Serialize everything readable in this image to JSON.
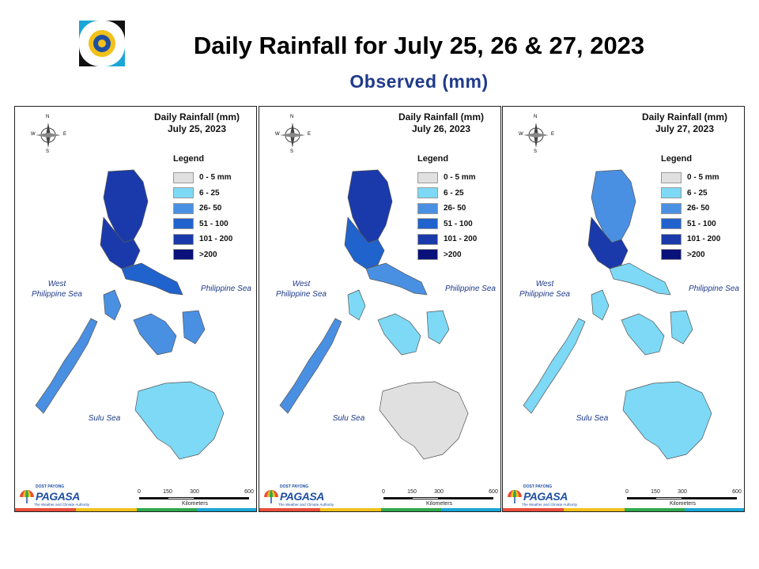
{
  "title": "Daily Rainfall for July 25, 26 & 27, 2023",
  "subtitle": "Observed (mm)",
  "legend_colors": [
    "#e0e0e0",
    "#7dd9f5",
    "#4a90e2",
    "#2163cc",
    "#1a3aab",
    "#0a117a"
  ],
  "panels": [
    {
      "map_title_line1": "Daily Rainfall (mm)",
      "map_title_line2": "July 25, 2023",
      "legend_title": "Legend",
      "legend_labels": [
        "0 - 5 mm",
        "6 - 25",
        "26- 50",
        "51 - 100",
        "101 - 200",
        ">200"
      ],
      "sea_west_line1": "West",
      "sea_west_line2": "Philippine Sea",
      "sea_east": "Philippine Sea",
      "sea_south": "Sulu Sea",
      "compass": {
        "n": "N",
        "s": "S",
        "e": "E",
        "w": "W"
      },
      "scale_ticks": [
        "0",
        "150",
        "300",
        "600"
      ],
      "scale_unit": "Kilometers",
      "brand_name": "PAGASA",
      "brand_top": "DOST PAYONG",
      "brand_tagline": "The Weather and Climate Authority",
      "regions": {
        "luzon_north": 4,
        "luzon_central": 4,
        "luzon_south": 3,
        "visayas": 2,
        "mindanao": 1,
        "palawan": 2
      }
    },
    {
      "map_title_line1": "Daily Rainfall (mm)",
      "map_title_line2": "July 26, 2023",
      "legend_title": "Legend",
      "legend_labels": [
        "0 - 5 mm",
        "6 - 25",
        "26- 50",
        "51 - 100",
        "101 - 200",
        ">200"
      ],
      "sea_west_line1": "West",
      "sea_west_line2": "Philippine Sea",
      "sea_east": "Philippine Sea",
      "sea_south": "Sulu Sea",
      "compass": {
        "n": "N",
        "s": "S",
        "e": "E",
        "w": "W"
      },
      "scale_ticks": [
        "0",
        "150",
        "300",
        "600"
      ],
      "scale_unit": "Kilometers",
      "brand_name": "PAGASA",
      "brand_top": "DOST PAYONG",
      "brand_tagline": "The Weather and Climate Authority",
      "regions": {
        "luzon_north": 4,
        "luzon_central": 3,
        "luzon_south": 2,
        "visayas": 1,
        "mindanao": 0,
        "palawan": 2
      }
    },
    {
      "map_title_line1": "Daily Rainfall (mm)",
      "map_title_line2": "July 27, 2023",
      "legend_title": "Legend",
      "legend_labels": [
        "0 - 5 mm",
        "6 - 25",
        "26- 50",
        "51 - 100",
        "101 - 200",
        ">200"
      ],
      "sea_west_line1": "West",
      "sea_west_line2": "Philippine Sea",
      "sea_east": "Philippine Sea",
      "sea_south": "Sulu Sea",
      "compass": {
        "n": "N",
        "s": "S",
        "e": "E",
        "w": "W"
      },
      "scale_ticks": [
        "0",
        "150",
        "300",
        "600"
      ],
      "scale_unit": "Kilometers",
      "brand_name": "PAGASA",
      "brand_top": "DOST PAYONG",
      "brand_tagline": "The Weather and Climate Authority",
      "regions": {
        "luzon_north": 2,
        "luzon_central": 4,
        "luzon_south": 1,
        "visayas": 1,
        "mindanao": 1,
        "palawan": 1
      }
    }
  ]
}
